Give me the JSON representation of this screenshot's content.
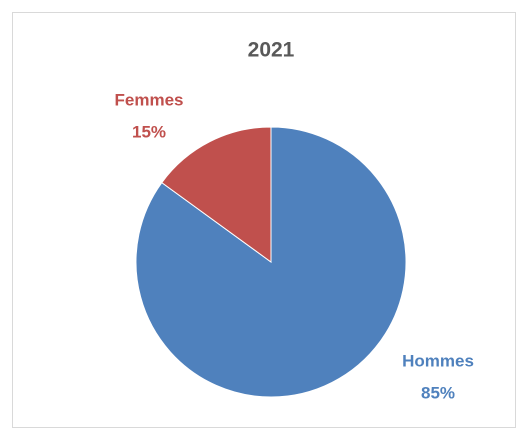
{
  "chart_data": {
    "type": "pie",
    "title": "2021",
    "categories": [
      "Hommes",
      "Femmes"
    ],
    "values": [
      85,
      15
    ],
    "value_labels": [
      "85%",
      "15%"
    ],
    "colors": [
      "#4f81bd",
      "#c0504d"
    ]
  }
}
